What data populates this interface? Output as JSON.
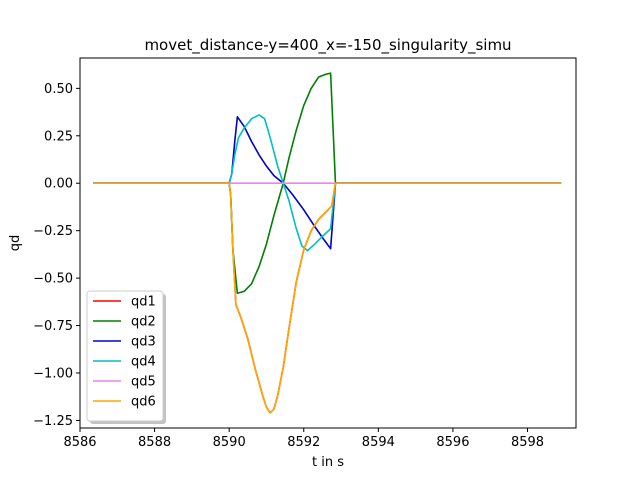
{
  "chart_data": {
    "type": "line",
    "title": "movet_distance-y=400_x=-150_singularity_simu",
    "xlabel": "t in s",
    "ylabel": "qd",
    "xlim": [
      8586.0,
      8599.3
    ],
    "ylim": [
      -1.29,
      0.66
    ],
    "xticks": [
      8586,
      8588,
      8590,
      8592,
      8594,
      8596,
      8598
    ],
    "yticks": [
      -1.25,
      -1.0,
      -0.75,
      -0.5,
      -0.25,
      0.0,
      0.25,
      0.5
    ],
    "ytick_labels": [
      "−1.25",
      "−1.00",
      "−0.75",
      "−0.50",
      "−0.25",
      "0.00",
      "0.25",
      "0.50"
    ],
    "grid": false,
    "legend_position": "lower-left",
    "series": [
      {
        "name": "qd1",
        "color": "#ff0000",
        "points": [
          [
            8586.35,
            0
          ],
          [
            8590.0,
            0
          ],
          [
            8590.04,
            -0.06
          ],
          [
            8590.1,
            -0.35
          ],
          [
            8590.18,
            -0.64
          ],
          [
            8590.3,
            -0.7
          ],
          [
            8590.5,
            -0.82
          ],
          [
            8590.7,
            -0.98
          ],
          [
            8590.9,
            -1.12
          ],
          [
            8591.0,
            -1.18
          ],
          [
            8591.1,
            -1.21
          ],
          [
            8591.2,
            -1.19
          ],
          [
            8591.3,
            -1.12
          ],
          [
            8591.45,
            -0.97
          ],
          [
            8591.6,
            -0.77
          ],
          [
            8591.8,
            -0.52
          ],
          [
            8592.0,
            -0.35
          ],
          [
            8592.2,
            -0.25
          ],
          [
            8592.4,
            -0.19
          ],
          [
            8592.6,
            -0.15
          ],
          [
            8592.75,
            -0.12
          ],
          [
            8592.85,
            0
          ],
          [
            8598.9,
            0
          ]
        ]
      },
      {
        "name": "qd2",
        "color": "#008000",
        "points": [
          [
            8586.35,
            0
          ],
          [
            8590.0,
            0
          ],
          [
            8590.04,
            -0.06
          ],
          [
            8590.1,
            -0.35
          ],
          [
            8590.22,
            -0.58
          ],
          [
            8590.4,
            -0.57
          ],
          [
            8590.6,
            -0.53
          ],
          [
            8590.8,
            -0.44
          ],
          [
            8591.0,
            -0.32
          ],
          [
            8591.2,
            -0.17
          ],
          [
            8591.45,
            0
          ],
          [
            8591.6,
            0.13
          ],
          [
            8591.8,
            0.28
          ],
          [
            8592.0,
            0.41
          ],
          [
            8592.2,
            0.5
          ],
          [
            8592.4,
            0.56
          ],
          [
            8592.6,
            0.575
          ],
          [
            8592.72,
            0.58
          ],
          [
            8592.85,
            0
          ],
          [
            8598.9,
            0
          ]
        ]
      },
      {
        "name": "qd3",
        "color": "#0000cd",
        "points": [
          [
            8586.35,
            0
          ],
          [
            8590.0,
            0
          ],
          [
            8590.07,
            0.05
          ],
          [
            8590.15,
            0.22
          ],
          [
            8590.22,
            0.35
          ],
          [
            8590.4,
            0.3
          ],
          [
            8590.6,
            0.22
          ],
          [
            8590.8,
            0.15
          ],
          [
            8591.0,
            0.09
          ],
          [
            8591.2,
            0.04
          ],
          [
            8591.45,
            0
          ],
          [
            8591.7,
            -0.06
          ],
          [
            8592.0,
            -0.14
          ],
          [
            8592.3,
            -0.23
          ],
          [
            8592.55,
            -0.3
          ],
          [
            8592.72,
            -0.345
          ],
          [
            8592.85,
            0
          ],
          [
            8598.9,
            0
          ]
        ]
      },
      {
        "name": "qd4",
        "color": "#00bfbf",
        "points": [
          [
            8586.35,
            0
          ],
          [
            8590.0,
            0
          ],
          [
            8590.07,
            0.05
          ],
          [
            8590.15,
            0.15
          ],
          [
            8590.25,
            0.24
          ],
          [
            8590.4,
            0.29
          ],
          [
            8590.6,
            0.34
          ],
          [
            8590.8,
            0.36
          ],
          [
            8590.95,
            0.34
          ],
          [
            8591.1,
            0.24
          ],
          [
            8591.3,
            0.09
          ],
          [
            8591.45,
            0
          ],
          [
            8591.6,
            -0.09
          ],
          [
            8591.8,
            -0.24
          ],
          [
            8591.95,
            -0.33
          ],
          [
            8592.1,
            -0.355
          ],
          [
            8592.3,
            -0.32
          ],
          [
            8592.5,
            -0.28
          ],
          [
            8592.72,
            -0.24
          ],
          [
            8592.85,
            0
          ],
          [
            8598.9,
            0
          ]
        ]
      },
      {
        "name": "qd5",
        "color": "#ee82ee",
        "points": [
          [
            8586.35,
            0
          ],
          [
            8598.9,
            0
          ]
        ]
      },
      {
        "name": "qd6",
        "color": "#ffa500",
        "points": [
          [
            8586.35,
            0
          ],
          [
            8590.0,
            0
          ],
          [
            8590.04,
            -0.06
          ],
          [
            8590.1,
            -0.35
          ],
          [
            8590.18,
            -0.64
          ],
          [
            8590.3,
            -0.7
          ],
          [
            8590.5,
            -0.82
          ],
          [
            8590.7,
            -0.98
          ],
          [
            8590.9,
            -1.12
          ],
          [
            8591.0,
            -1.18
          ],
          [
            8591.1,
            -1.21
          ],
          [
            8591.2,
            -1.19
          ],
          [
            8591.3,
            -1.12
          ],
          [
            8591.45,
            -0.97
          ],
          [
            8591.6,
            -0.77
          ],
          [
            8591.8,
            -0.52
          ],
          [
            8592.0,
            -0.35
          ],
          [
            8592.2,
            -0.25
          ],
          [
            8592.4,
            -0.19
          ],
          [
            8592.6,
            -0.15
          ],
          [
            8592.75,
            -0.12
          ],
          [
            8592.85,
            0
          ],
          [
            8598.9,
            0
          ]
        ]
      }
    ]
  }
}
